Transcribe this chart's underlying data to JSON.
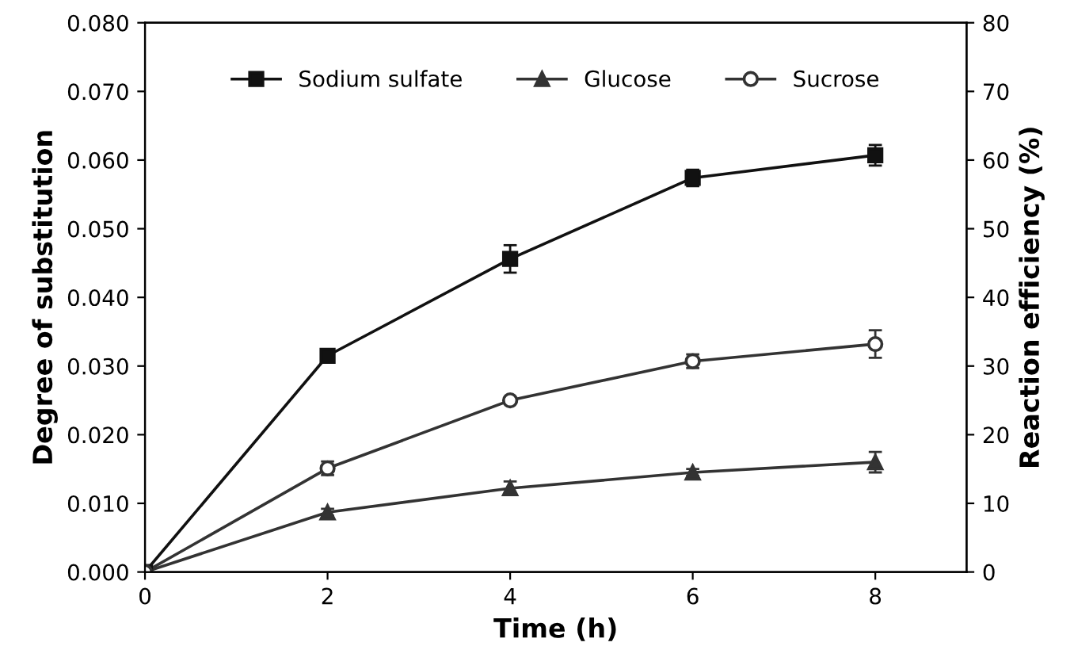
{
  "chart_data": {
    "type": "line",
    "xlabel": "Time (h)",
    "ylabel": "Degree of substitution",
    "y2label": "Reaction efficiency (%)",
    "x": [
      0,
      2,
      4,
      6,
      8
    ],
    "series": [
      {
        "name": "Sodium sulfate",
        "color": "#111111",
        "marker": "square",
        "values": [
          0,
          0.0315,
          0.0456,
          0.0574,
          0.0607
        ],
        "errors": [
          null,
          0.0007,
          0.002,
          0.0012,
          0.0015
        ]
      },
      {
        "name": "Glucose",
        "color": "#333333",
        "marker": "triangle",
        "values": [
          0,
          0.0087,
          0.0122,
          0.0145,
          0.016
        ],
        "errors": [
          null,
          0.0005,
          0.001,
          0.0005,
          0.0015
        ]
      },
      {
        "name": "Sucrose",
        "color": "#333333",
        "marker": "circle",
        "values": [
          0,
          0.0151,
          0.025,
          0.0307,
          0.0332
        ],
        "errors": [
          null,
          0.001,
          0.0004,
          0.001,
          0.002
        ]
      }
    ],
    "xlim": [
      0,
      9
    ],
    "xticks": [
      0,
      2,
      4,
      6,
      8
    ],
    "ylim": [
      0,
      0.08
    ],
    "yticks": [
      {
        "value": 0,
        "label": "0.000"
      },
      {
        "value": 0.01,
        "label": "0.010"
      },
      {
        "value": 0.02,
        "label": "0.020"
      },
      {
        "value": 0.03,
        "label": "0.030"
      },
      {
        "value": 0.04,
        "label": "0.040"
      },
      {
        "value": 0.05,
        "label": "0.050"
      },
      {
        "value": 0.06,
        "label": "0.060"
      },
      {
        "value": 0.07,
        "label": "0.070"
      },
      {
        "value": 0.08,
        "label": "0.080"
      }
    ],
    "y2lim": [
      0,
      80
    ],
    "y2ticks": [
      0,
      10,
      20,
      30,
      40,
      50,
      60,
      70,
      80
    ],
    "grid": false,
    "legend": "top",
    "line_style": "solid"
  }
}
